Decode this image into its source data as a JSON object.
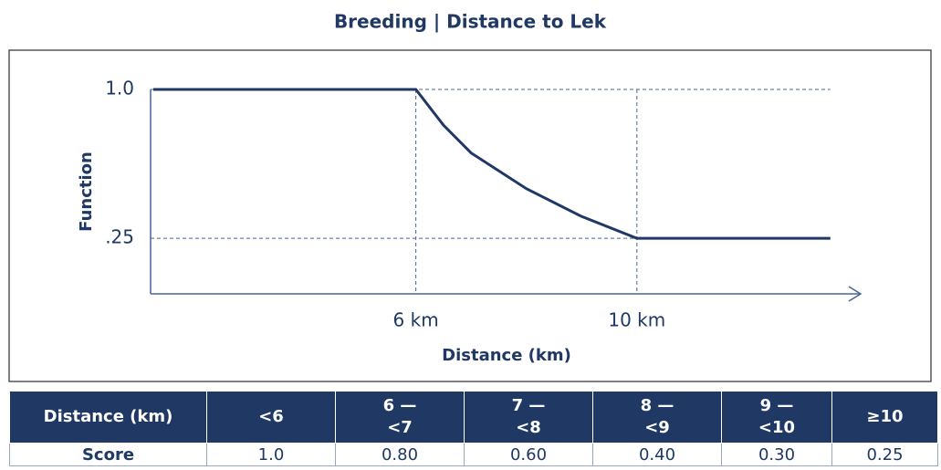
{
  "chart_data": {
    "type": "line",
    "title": "Breeding | Distance to Lek",
    "xlabel": "Distance (km)",
    "ylabel": "Function",
    "x": [
      1.25,
      6,
      6.5,
      7,
      8,
      9,
      10,
      13.5
    ],
    "series": [
      {
        "name": "Function",
        "color": "#1f3864",
        "values": [
          1,
          1,
          0.82,
          0.68,
          0.5,
          0.36,
          0.25,
          0.25
        ]
      }
    ],
    "xlim": [
      1.2,
      14
    ],
    "ylim": [
      -0.03,
      1
    ],
    "xticks": [
      {
        "value": 6,
        "label": "6 km"
      },
      {
        "value": 10,
        "label": "10 km"
      }
    ],
    "yticks": [
      {
        "value": 1,
        "label": "1.0"
      },
      {
        "value": 0.25,
        "label": ".25"
      }
    ],
    "grid": true
  },
  "table": {
    "header": [
      "Distance (km)",
      "<6",
      "6 —\n<7",
      "7 —\n<8",
      "8 —\n<9",
      "9 —\n<10",
      "≥10"
    ],
    "rows": [
      [
        "Score",
        "1.0",
        "0.80",
        "0.60",
        "0.40",
        "0.30",
        "0.25"
      ]
    ]
  }
}
